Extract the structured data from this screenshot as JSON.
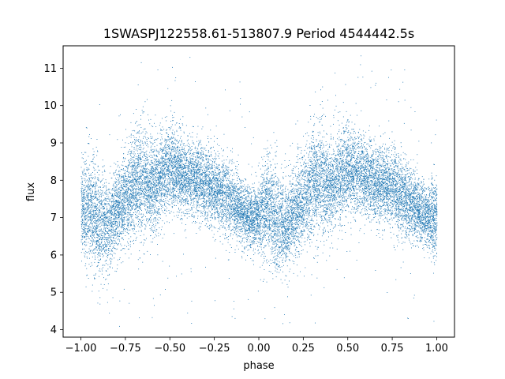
{
  "chart_data": {
    "type": "scatter",
    "title": "1SWASPJ122558.61-513807.9 Period 4544442.5s",
    "xlabel": "phase",
    "ylabel": "flux",
    "xlim": [
      -1.1,
      1.1
    ],
    "ylim": [
      3.8,
      11.6
    ],
    "x_ticks": [
      -1.0,
      -0.75,
      -0.5,
      -0.25,
      0.0,
      0.25,
      0.5,
      0.75,
      1.0
    ],
    "x_tick_labels": [
      "−1.00",
      "−0.75",
      "−0.50",
      "−0.25",
      "0.00",
      "0.25",
      "0.50",
      "0.75",
      "1.00"
    ],
    "y_ticks": [
      4,
      5,
      6,
      7,
      8,
      9,
      10,
      11
    ],
    "y_tick_labels": [
      "4",
      "5",
      "6",
      "7",
      "8",
      "9",
      "10",
      "11"
    ],
    "grid": false,
    "legend": false,
    "point_color": "#1f77b4",
    "series": [
      {
        "x": [
          -1.0,
          -0.95,
          -0.9,
          -0.85,
          -0.8,
          -0.75,
          -0.7,
          -0.65,
          -0.6,
          -0.55,
          -0.5,
          -0.45,
          -0.4,
          -0.35,
          -0.3,
          -0.25,
          -0.2,
          -0.15,
          -0.1,
          -0.05,
          0.0,
          0.05,
          0.1,
          0.15,
          0.2,
          0.25,
          0.3,
          0.35,
          0.4,
          0.45,
          0.5,
          0.55,
          0.6,
          0.65,
          0.7,
          0.75,
          0.8,
          0.85,
          0.9,
          0.95,
          1.0
        ],
        "y": [
          7.1,
          7.3,
          6.9,
          6.8,
          7.2,
          7.5,
          7.9,
          8.0,
          7.8,
          8.1,
          8.3,
          8.2,
          8.1,
          8.0,
          7.9,
          7.8,
          7.6,
          7.4,
          7.2,
          7.0,
          7.0,
          7.3,
          6.9,
          6.8,
          7.2,
          7.5,
          7.9,
          8.0,
          7.8,
          8.1,
          8.3,
          8.2,
          8.1,
          8.0,
          7.9,
          7.8,
          7.6,
          7.4,
          7.2,
          7.0,
          7.1
        ],
        "spread": [
          0.6,
          0.7,
          0.7,
          0.6,
          0.6,
          0.6,
          0.7,
          0.7,
          0.6,
          0.6,
          0.6,
          0.5,
          0.5,
          0.5,
          0.5,
          0.5,
          0.5,
          0.5,
          0.4,
          0.4,
          0.5,
          0.7,
          0.7,
          0.6,
          0.6,
          0.6,
          0.7,
          0.7,
          0.6,
          0.6,
          0.6,
          0.5,
          0.5,
          0.5,
          0.5,
          0.5,
          0.5,
          0.5,
          0.4,
          0.4,
          0.6
        ],
        "point_count": 18000
      }
    ]
  }
}
